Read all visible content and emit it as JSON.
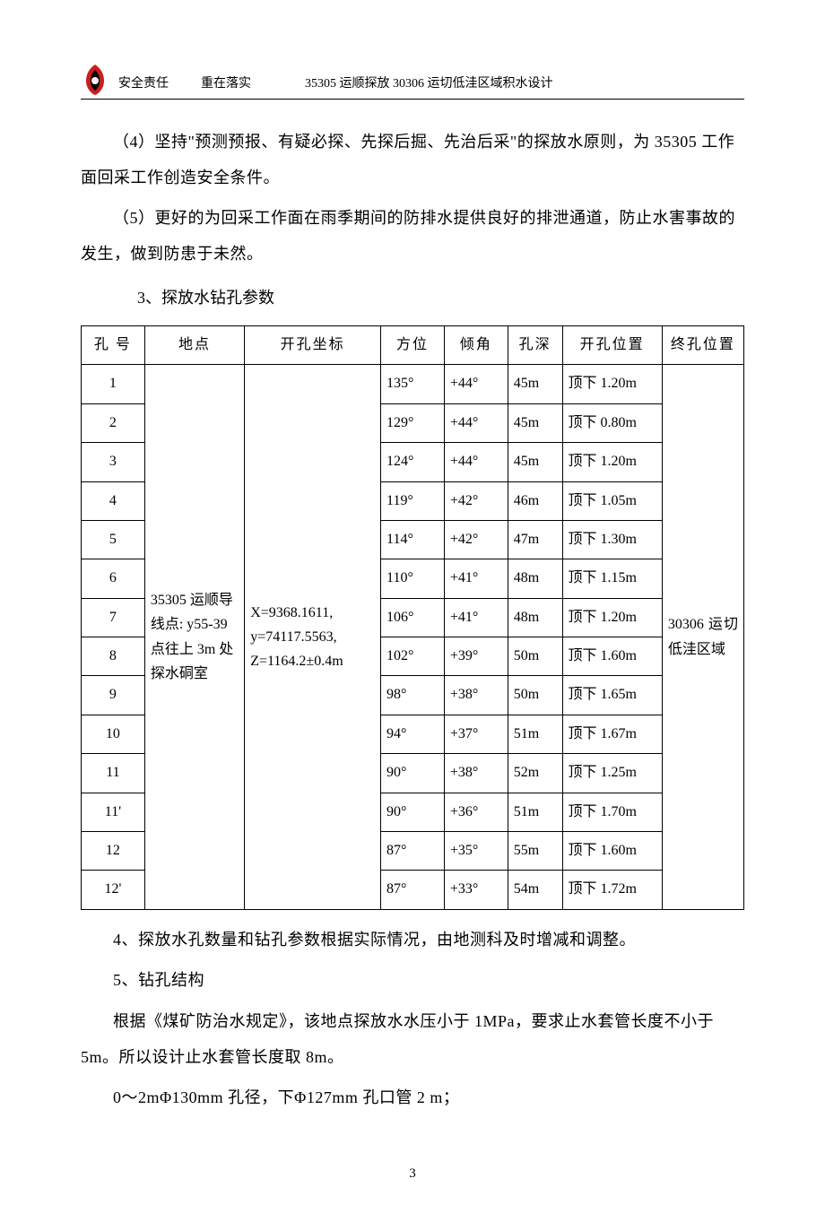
{
  "header": {
    "text1": "安全责任",
    "text2": "重在落实",
    "text3": "35305 运顺探放 30306 运切低洼区域积水设计"
  },
  "para4": "（4）坚持\"预测预报、有疑必探、先探后掘、先治后采\"的探放水原则，为 35305 工作面回采工作创造安全条件。",
  "para5": "（5）更好的为回采工作面在雨季期间的防排水提供良好的排泄通道，防止水害事故的发生，做到防患于未然。",
  "section3": "3、探放水钻孔参数",
  "table": {
    "headers": {
      "hole": "孔 号",
      "loc": "地点",
      "coord": "开孔坐标",
      "dir": "方位",
      "ang": "倾角",
      "depth": "孔深",
      "open": "开孔位置",
      "end": "终孔位置"
    },
    "location": "35305 运顺导线点: y55-39 点往上 3m 处探水硐室",
    "coords": "X=9368.1611, y=74117.5563, Z=1164.2±0.4m",
    "endloc": "30306 运切低洼区域",
    "rows": [
      {
        "n": "1",
        "dir": "135°",
        "ang": "+44°",
        "depth": "45m",
        "open": "顶下 1.20m"
      },
      {
        "n": "2",
        "dir": "129°",
        "ang": "+44°",
        "depth": "45m",
        "open": "顶下 0.80m"
      },
      {
        "n": "3",
        "dir": "124°",
        "ang": "+44°",
        "depth": "45m",
        "open": "顶下 1.20m"
      },
      {
        "n": "4",
        "dir": "119°",
        "ang": "+42°",
        "depth": "46m",
        "open": "顶下 1.05m"
      },
      {
        "n": "5",
        "dir": "114°",
        "ang": "+42°",
        "depth": "47m",
        "open": "顶下 1.30m"
      },
      {
        "n": "6",
        "dir": "110°",
        "ang": "+41°",
        "depth": "48m",
        "open": "顶下 1.15m"
      },
      {
        "n": "7",
        "dir": "106°",
        "ang": "+41°",
        "depth": "48m",
        "open": "顶下 1.20m"
      },
      {
        "n": "8",
        "dir": "102°",
        "ang": "+39°",
        "depth": "50m",
        "open": "顶下 1.60m"
      },
      {
        "n": "9",
        "dir": "98°",
        "ang": "+38°",
        "depth": "50m",
        "open": "顶下 1.65m"
      },
      {
        "n": "10",
        "dir": "94°",
        "ang": "+37°",
        "depth": "51m",
        "open": "顶下 1.67m"
      },
      {
        "n": "11",
        "dir": "90°",
        "ang": "+38°",
        "depth": "52m",
        "open": "顶下 1.25m"
      },
      {
        "n": "11'",
        "dir": "90°",
        "ang": "+36°",
        "depth": "51m",
        "open": "顶下 1.70m"
      },
      {
        "n": "12",
        "dir": "87°",
        "ang": "+35°",
        "depth": "55m",
        "open": "顶下 1.60m"
      },
      {
        "n": "12'",
        "dir": "87°",
        "ang": "+33°",
        "depth": "54m",
        "open": "顶下 1.72m"
      }
    ]
  },
  "para_after_table": "4、探放水孔数量和钻孔参数根据实际情况，由地测科及时增减和调整。",
  "section5": "5、钻孔结构",
  "para5_1": "根据《煤矿防治水规定》，该地点探放水水压小于 1MPa，要求止水套管长度不小于 5m。所以设计止水套管长度取 8m。",
  "para5_2": "0～2mΦ130mm 孔径，下Φ127mm 孔口管 2 m；",
  "page_num": "3"
}
